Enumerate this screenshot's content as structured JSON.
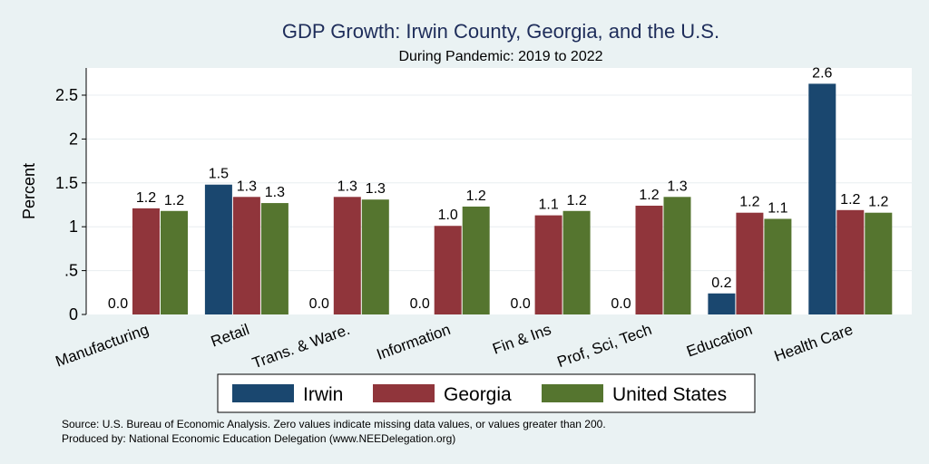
{
  "chart_data": {
    "type": "bar",
    "title": "GDP Growth: Irwin County, Georgia, and the U.S.",
    "subtitle": "During Pandemic: 2019 to 2022",
    "xlabel": "",
    "ylabel": "Percent",
    "ylim": [
      0,
      2.8
    ],
    "yticks": [
      0,
      0.5,
      1,
      1.5,
      2,
      2.5
    ],
    "ytick_labels": [
      "0",
      ".5",
      "1",
      "1.5",
      "2",
      "2.5"
    ],
    "grid": true,
    "legend_position": "bottom",
    "categories": [
      "Manufacturing",
      "Retail",
      "Trans. & Ware.",
      "Information",
      "Fin & Ins",
      "Prof, Sci, Tech",
      "Education",
      "Health Care"
    ],
    "series": [
      {
        "name": "Irwin",
        "color": "#1a476f",
        "values": [
          0.0,
          1.48,
          0.0,
          0.0,
          0.0,
          0.0,
          0.24,
          2.63
        ]
      },
      {
        "name": "Georgia",
        "color": "#90353b",
        "values": [
          1.21,
          1.34,
          1.34,
          1.01,
          1.13,
          1.24,
          1.16,
          1.19
        ]
      },
      {
        "name": "United States",
        "color": "#55752f",
        "values": [
          1.18,
          1.27,
          1.31,
          1.23,
          1.18,
          1.34,
          1.09,
          1.16
        ]
      }
    ],
    "notes": [
      "Source: U.S. Bureau of Economic Analysis. Zero values indicate missing data values, or values greater than 200.",
      "Produced by: National Economic Education Delegation (www.NEEDelegation.org)"
    ]
  }
}
